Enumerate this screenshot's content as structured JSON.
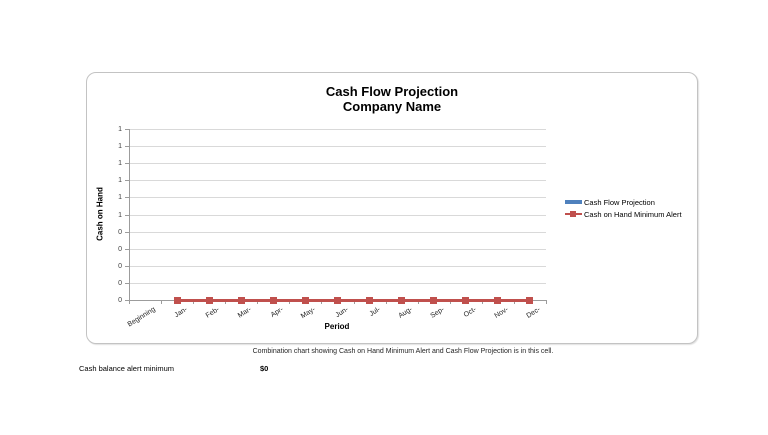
{
  "chart_data": {
    "type": "combo",
    "title": "Cash Flow Projection",
    "subtitle": "Company Name",
    "xlabel": "Period",
    "ylabel": "Cash on Hand",
    "categories": [
      "Beginning",
      "Jan-",
      "Feb-",
      "Mar-",
      "Apr-",
      "May-",
      "Jun-",
      "Jul-",
      "Aug-",
      "Sep-",
      "Oct-",
      "Nov-",
      "Dec-"
    ],
    "ylim": [
      0,
      1
    ],
    "y_tick_labels_top_to_bottom": [
      "1",
      "1",
      "1",
      "1",
      "1",
      "1",
      "0",
      "0",
      "0",
      "0",
      "0"
    ],
    "grid": true,
    "legend_position": "right",
    "series": [
      {
        "name": "Cash Flow Projection",
        "type": "bar",
        "color": "#4F81BD",
        "values": [
          0,
          0,
          0,
          0,
          0,
          0,
          0,
          0,
          0,
          0,
          0,
          0,
          0
        ]
      },
      {
        "name": "Cash on Hand Minimum Alert",
        "type": "line",
        "marker": "square",
        "color": "#C0504D",
        "values": [
          null,
          0,
          0,
          0,
          0,
          0,
          0,
          0,
          0,
          0,
          0,
          0,
          0
        ]
      }
    ]
  },
  "caption": "Combination chart showing Cash on Hand Minimum Alert and Cash Flow Projection is in this cell.",
  "footer": {
    "label": "Cash balance alert minimum",
    "value": "$0"
  },
  "colors": {
    "grid": "#d9d9d9",
    "axis": "#9c9c9c",
    "tick_text": "#404040",
    "bar_series": "#4F81BD",
    "line_series": "#C0504D"
  }
}
